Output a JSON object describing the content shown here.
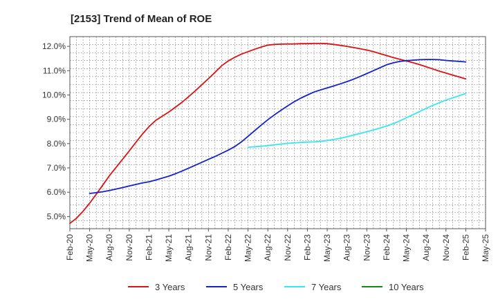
{
  "chart_data": {
    "type": "line",
    "title": "[2153]  Trend of Mean of ROE",
    "x_ticks": [
      "Feb-20",
      "May-20",
      "Aug-20",
      "Nov-20",
      "Feb-21",
      "May-21",
      "Aug-21",
      "Nov-21",
      "Feb-22",
      "May-22",
      "Aug-22",
      "Nov-22",
      "Feb-23",
      "May-23",
      "Aug-23",
      "Nov-23",
      "Feb-24",
      "May-24",
      "Aug-24",
      "Nov-24",
      "Feb-25",
      "May-25"
    ],
    "y_ticks": [
      "5.0%",
      "6.0%",
      "7.0%",
      "8.0%",
      "9.0%",
      "10.0%",
      "11.0%",
      "12.0%"
    ],
    "ylim": [
      4.5,
      12.4
    ],
    "grid": true,
    "legend_position": "bottom",
    "series": [
      {
        "name": "3 Years",
        "color": "#dd1111",
        "x": [
          "Feb-20",
          "Mar-20",
          "Apr-20",
          "May-20",
          "Jun-20",
          "Jul-20",
          "Aug-20",
          "Sep-20",
          "Oct-20",
          "Nov-20",
          "Dec-20",
          "Jan-21",
          "Feb-21",
          "Mar-21",
          "Apr-21",
          "May-21",
          "Jun-21",
          "Jul-21",
          "Aug-21",
          "Sep-21",
          "Oct-21",
          "Nov-21",
          "Dec-21",
          "Jan-22",
          "Feb-22",
          "Mar-22",
          "Apr-22",
          "May-22",
          "Jun-22",
          "Jul-22",
          "Aug-22",
          "Sep-22",
          "Oct-22",
          "Nov-22",
          "Dec-22",
          "Jan-23",
          "Feb-23",
          "Mar-23",
          "Apr-23",
          "May-23",
          "Jun-23",
          "Jul-23",
          "Aug-23",
          "Sep-23",
          "Oct-23",
          "Nov-23",
          "Dec-23",
          "Jan-24",
          "Feb-24",
          "Mar-24",
          "Apr-24",
          "May-24",
          "Jun-24",
          "Jul-24",
          "Aug-24",
          "Sep-24",
          "Oct-24",
          "Nov-24",
          "Dec-24",
          "Jan-25",
          "Feb-25"
        ],
        "values": [
          4.72,
          4.93,
          5.22,
          5.55,
          5.92,
          6.3,
          6.68,
          7.02,
          7.36,
          7.7,
          8.05,
          8.39,
          8.7,
          8.95,
          9.13,
          9.3,
          9.5,
          9.7,
          9.93,
          10.17,
          10.42,
          10.67,
          10.93,
          11.2,
          11.4,
          11.55,
          11.68,
          11.78,
          11.88,
          11.97,
          12.05,
          12.08,
          12.09,
          12.1,
          12.1,
          12.11,
          12.11,
          12.12,
          12.12,
          12.11,
          12.08,
          12.04,
          12.0,
          11.95,
          11.9,
          11.85,
          11.78,
          11.7,
          11.62,
          11.54,
          11.47,
          11.4,
          11.33,
          11.25,
          11.16,
          11.07,
          10.98,
          10.9,
          10.82,
          10.74,
          10.66
        ]
      },
      {
        "name": "5 Years",
        "color": "#1122cc",
        "x": [
          "May-20",
          "Jun-20",
          "Jul-20",
          "Aug-20",
          "Sep-20",
          "Oct-20",
          "Nov-20",
          "Dec-20",
          "Jan-21",
          "Feb-21",
          "Mar-21",
          "Apr-21",
          "May-21",
          "Jun-21",
          "Jul-21",
          "Aug-21",
          "Sep-21",
          "Oct-21",
          "Nov-21",
          "Dec-21",
          "Jan-22",
          "Feb-22",
          "Mar-22",
          "Apr-22",
          "May-22",
          "Jun-22",
          "Jul-22",
          "Aug-22",
          "Sep-22",
          "Oct-22",
          "Nov-22",
          "Dec-22",
          "Jan-23",
          "Feb-23",
          "Mar-23",
          "Apr-23",
          "May-23",
          "Jun-23",
          "Jul-23",
          "Aug-23",
          "Sep-23",
          "Oct-23",
          "Nov-23",
          "Dec-23",
          "Jan-24",
          "Feb-24",
          "Mar-24",
          "Apr-24",
          "May-24",
          "Jun-24",
          "Jul-24",
          "Aug-24",
          "Sep-24",
          "Oct-24",
          "Nov-24",
          "Dec-24",
          "Jan-25",
          "Feb-25"
        ],
        "values": [
          5.95,
          5.98,
          6.02,
          6.07,
          6.13,
          6.19,
          6.26,
          6.32,
          6.38,
          6.43,
          6.5,
          6.58,
          6.66,
          6.76,
          6.87,
          6.99,
          7.11,
          7.23,
          7.35,
          7.47,
          7.6,
          7.73,
          7.88,
          8.07,
          8.3,
          8.53,
          8.76,
          8.98,
          9.18,
          9.37,
          9.55,
          9.72,
          9.87,
          10.0,
          10.12,
          10.21,
          10.29,
          10.37,
          10.46,
          10.55,
          10.65,
          10.76,
          10.88,
          11.0,
          11.12,
          11.24,
          11.32,
          11.38,
          11.41,
          11.43,
          11.45,
          11.46,
          11.46,
          11.45,
          11.42,
          11.4,
          11.38,
          11.36
        ]
      },
      {
        "name": "7 Years",
        "color": "#33e8f0",
        "x": [
          "May-22",
          "Jun-22",
          "Jul-22",
          "Aug-22",
          "Sep-22",
          "Oct-22",
          "Nov-22",
          "Dec-22",
          "Jan-23",
          "Feb-23",
          "Mar-23",
          "Apr-23",
          "May-23",
          "Jun-23",
          "Jul-23",
          "Aug-23",
          "Sep-23",
          "Oct-23",
          "Nov-23",
          "Dec-23",
          "Jan-24",
          "Feb-24",
          "Mar-24",
          "Apr-24",
          "May-24",
          "Jun-24",
          "Jul-24",
          "Aug-24",
          "Sep-24",
          "Oct-24",
          "Nov-24",
          "Dec-24",
          "Jan-25",
          "Feb-25"
        ],
        "values": [
          7.85,
          7.87,
          7.89,
          7.92,
          7.95,
          7.98,
          8.01,
          8.03,
          8.05,
          8.06,
          8.07,
          8.09,
          8.13,
          8.17,
          8.22,
          8.28,
          8.35,
          8.42,
          8.49,
          8.56,
          8.64,
          8.72,
          8.82,
          8.93,
          9.06,
          9.19,
          9.32,
          9.45,
          9.57,
          9.68,
          9.79,
          9.88,
          9.97,
          10.06
        ]
      },
      {
        "name": "10 Years",
        "color": "#118811",
        "x": [],
        "values": []
      }
    ]
  }
}
